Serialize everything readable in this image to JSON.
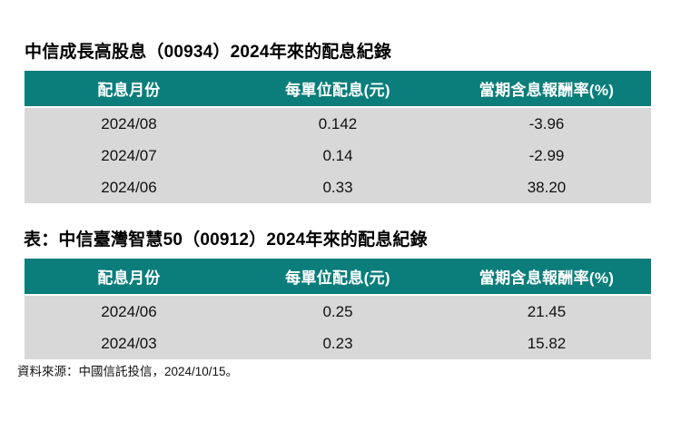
{
  "chart_data": [
    {
      "type": "table",
      "title": "中信成長高股息（00934）2024年來的配息紀錄",
      "columns": [
        "配息月份",
        "每單位配息(元)",
        "當期含息報酬率(%)"
      ],
      "rows": [
        [
          "2024/08",
          "0.142",
          "-3.96"
        ],
        [
          "2024/07",
          "0.14",
          "-2.99"
        ],
        [
          "2024/06",
          "0.33",
          "38.20"
        ]
      ]
    },
    {
      "type": "table",
      "title": "表：中信臺灣智慧50（00912）2024年來的配息紀錄",
      "columns": [
        "配息月份",
        "每單位配息(元)",
        "當期含息報酬率(%)"
      ],
      "rows": [
        [
          "2024/06",
          "0.25",
          "21.45"
        ],
        [
          "2024/03",
          "0.23",
          "15.82"
        ]
      ]
    }
  ],
  "footer": {
    "source": "資料來源：中國信託投信，2024/10/15。"
  },
  "colors": {
    "header_background": "#0b7e7b",
    "row_background": "#d8d8d8",
    "header_text": "#ffffff",
    "body_text": "#111111"
  }
}
